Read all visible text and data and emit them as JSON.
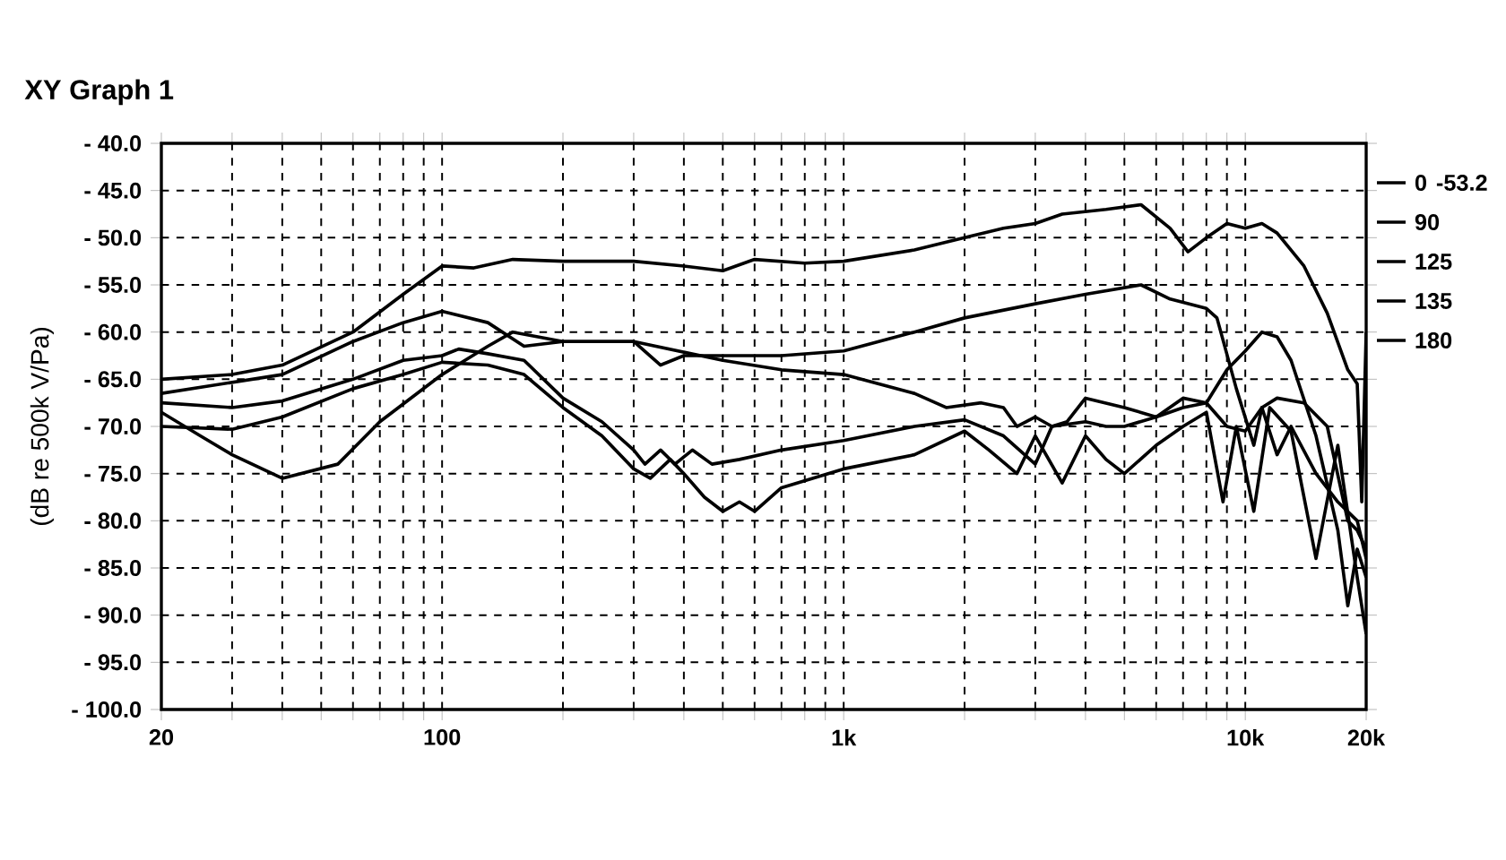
{
  "chart_data": {
    "type": "line",
    "title": "XY Graph 1",
    "ylabel": "(dB re 500k V/Pa)",
    "log": "x",
    "grid": true,
    "legend": "right",
    "marker": "none",
    "line_style": "solid",
    "annotations": [
      "-53.2"
    ],
    "xlim": [
      20,
      20000
    ],
    "ylim": [
      -100,
      -40
    ],
    "xticks": [
      {
        "value": 20,
        "label": "20"
      },
      {
        "value": 30,
        "label": null
      },
      {
        "value": 40,
        "label": null
      },
      {
        "value": 50,
        "label": null
      },
      {
        "value": 60,
        "label": null
      },
      {
        "value": 70,
        "label": null
      },
      {
        "value": 80,
        "label": null
      },
      {
        "value": 90,
        "label": null
      },
      {
        "value": 100,
        "label": "100"
      },
      {
        "value": 200,
        "label": null
      },
      {
        "value": 300,
        "label": null
      },
      {
        "value": 400,
        "label": null
      },
      {
        "value": 500,
        "label": null
      },
      {
        "value": 600,
        "label": null
      },
      {
        "value": 700,
        "label": null
      },
      {
        "value": 800,
        "label": null
      },
      {
        "value": 900,
        "label": null
      },
      {
        "value": 1000,
        "label": "1k"
      },
      {
        "value": 2000,
        "label": null
      },
      {
        "value": 3000,
        "label": null
      },
      {
        "value": 4000,
        "label": null
      },
      {
        "value": 5000,
        "label": null
      },
      {
        "value": 6000,
        "label": null
      },
      {
        "value": 7000,
        "label": null
      },
      {
        "value": 8000,
        "label": null
      },
      {
        "value": 9000,
        "label": null
      },
      {
        "value": 10000,
        "label": "10k"
      },
      {
        "value": 20000,
        "label": "20k"
      }
    ],
    "yticks": [
      {
        "value": -40,
        "label": "- 40.0"
      },
      {
        "value": -45,
        "label": "- 45.0"
      },
      {
        "value": -50,
        "label": "- 50.0"
      },
      {
        "value": -55,
        "label": "- 55.0"
      },
      {
        "value": -60,
        "label": "- 60.0"
      },
      {
        "value": -65,
        "label": "- 65.0"
      },
      {
        "value": -70,
        "label": "- 70.0"
      },
      {
        "value": -75,
        "label": "- 75.0"
      },
      {
        "value": -80,
        "label": "- 80.0"
      },
      {
        "value": -85,
        "label": "- 85.0"
      },
      {
        "value": -90,
        "label": "- 90.0"
      },
      {
        "value": -95,
        "label": "- 95.0"
      },
      {
        "value": -100,
        "label": "- 100.0"
      }
    ],
    "series": [
      {
        "name": "0",
        "color": "#000000",
        "x": [
          20,
          30,
          40,
          60,
          80,
          100,
          120,
          150,
          200,
          300,
          400,
          500,
          600,
          800,
          1000,
          1500,
          2000,
          2500,
          3000,
          3500,
          4500,
          5500,
          6500,
          7200,
          8000,
          9000,
          10000,
          11000,
          12000,
          14000,
          16000,
          18000,
          19000,
          19500,
          20000
        ],
        "values": [
          -65,
          -64.5,
          -63.5,
          -60,
          -56,
          -53,
          -53.2,
          -52.3,
          -52.5,
          -52.5,
          -53,
          -53.5,
          -52.3,
          -52.7,
          -52.5,
          -51.3,
          -50,
          -49,
          -48.5,
          -47.5,
          -47,
          -46.5,
          -49,
          -51.5,
          -50,
          -48.5,
          -49,
          -48.5,
          -49.5,
          -53,
          -58,
          -64,
          -65.5,
          -78,
          -60
        ]
      },
      {
        "name": "90",
        "color": "#000000",
        "x": [
          20,
          40,
          60,
          80,
          100,
          130,
          160,
          200,
          300,
          350,
          400,
          500,
          700,
          1000,
          1500,
          2000,
          3000,
          4000,
          5500,
          6500,
          8000,
          8500,
          9500,
          10500,
          11000,
          12000,
          13000,
          15000,
          17000,
          19000,
          20000
        ],
        "values": [
          -66.5,
          -64.5,
          -61,
          -59,
          -57.8,
          -59,
          -61.5,
          -61,
          -61,
          -63.5,
          -62.5,
          -62.5,
          -62.5,
          -62,
          -60,
          -58.5,
          -57,
          -56,
          -55,
          -56.5,
          -57.5,
          -58.5,
          -66,
          -72,
          -68,
          -73,
          -70,
          -75,
          -78,
          -80,
          -84
        ]
      },
      {
        "name": "125",
        "color": "#000000",
        "x": [
          20,
          30,
          40,
          60,
          80,
          100,
          110,
          130,
          160,
          200,
          250,
          300,
          320,
          350,
          380,
          420,
          470,
          550,
          700,
          1000,
          1500,
          2000,
          2500,
          3000,
          3300,
          4000,
          4500,
          5000,
          6000,
          7000,
          8000,
          9000,
          10000,
          11000,
          12000,
          14000,
          16000,
          18000,
          19000,
          20000
        ],
        "values": [
          -67.5,
          -68,
          -67.3,
          -65,
          -63,
          -62.5,
          -61.8,
          -62.3,
          -63,
          -67,
          -69.5,
          -72.5,
          -74,
          -72.5,
          -74,
          -72.5,
          -74,
          -73.5,
          -72.5,
          -71.5,
          -70,
          -69.3,
          -71,
          -74,
          -70,
          -69.5,
          -70,
          -70,
          -69,
          -68,
          -67.5,
          -70,
          -70.5,
          -68,
          -67,
          -67.5,
          -70,
          -80,
          -81,
          -83
        ]
      },
      {
        "name": "135",
        "color": "#000000",
        "x": [
          20,
          30,
          40,
          60,
          80,
          100,
          130,
          160,
          200,
          250,
          300,
          330,
          370,
          400,
          450,
          500,
          550,
          600,
          700,
          1000,
          1500,
          2000,
          2300,
          2700,
          3000,
          3500,
          4000,
          4500,
          5000,
          6000,
          7000,
          8000,
          8800,
          9500,
          10500,
          11500,
          13000,
          15000,
          17000,
          19000,
          20000
        ],
        "values": [
          -70,
          -70.3,
          -69,
          -66,
          -64.5,
          -63.2,
          -63.5,
          -64.5,
          -68,
          -71,
          -74.5,
          -75.5,
          -73.5,
          -75,
          -77.5,
          -79,
          -78,
          -79,
          -76.5,
          -74.5,
          -73,
          -70.5,
          -72.5,
          -75,
          -71,
          -76,
          -71,
          -73.5,
          -75,
          -72,
          -70,
          -68.5,
          -78,
          -70,
          -79,
          -68,
          -70.5,
          -84,
          -72,
          -86,
          -92
        ]
      },
      {
        "name": "180",
        "color": "#000000",
        "x": [
          20,
          25,
          30,
          40,
          55,
          70,
          100,
          130,
          150,
          200,
          300,
          500,
          700,
          1000,
          1500,
          1800,
          2200,
          2500,
          2700,
          3000,
          3300,
          3600,
          4000,
          5000,
          6000,
          7000,
          8000,
          9000,
          10000,
          11000,
          12000,
          13000,
          15000,
          17000,
          18000,
          19000,
          20000
        ],
        "values": [
          -68.5,
          -71,
          -73,
          -75.5,
          -74,
          -69.5,
          -64.5,
          -61.5,
          -60,
          -61,
          -61,
          -63,
          -64,
          -64.5,
          -66.5,
          -68,
          -67.5,
          -68,
          -70,
          -69,
          -70,
          -69.5,
          -67,
          -68,
          -69,
          -67,
          -67.5,
          -64,
          -62,
          -60,
          -60.5,
          -63,
          -71,
          -81,
          -89,
          -83,
          -86
        ]
      }
    ]
  }
}
